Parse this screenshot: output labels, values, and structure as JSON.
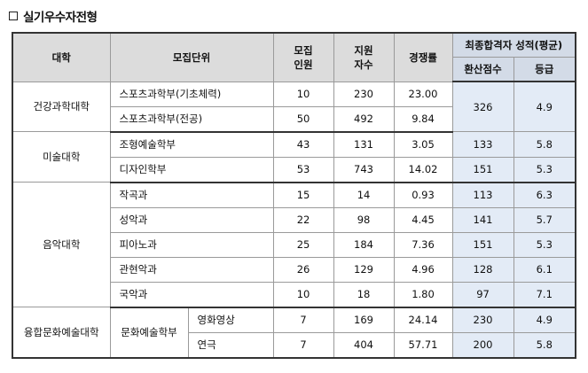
{
  "title": "실기우수자전형",
  "headers": {
    "college": "대학",
    "unit": "모집단위",
    "quota": "모집\n인원",
    "applicants": "지원\n자수",
    "ratio": "경쟁률",
    "final": "최종합격자 성적(평균)",
    "score": "환산점수",
    "grade": "등급"
  },
  "colleges": {
    "c1": "건강과학대학",
    "c2": "미술대학",
    "c3": "음악대학",
    "c4": "융합문화예술대학"
  },
  "rows": [
    {
      "unit": "스포츠과학부(기초체력)",
      "quota": "10",
      "applicants": "230",
      "ratio": "23.00"
    },
    {
      "unit": "스포츠과학부(전공)",
      "quota": "50",
      "applicants": "492",
      "ratio": "9.84"
    },
    {
      "unit": "조형예술학부",
      "quota": "43",
      "applicants": "131",
      "ratio": "3.05",
      "score": "133",
      "grade": "5.8"
    },
    {
      "unit": "디자인학부",
      "quota": "53",
      "applicants": "743",
      "ratio": "14.02",
      "score": "151",
      "grade": "5.3"
    },
    {
      "unit": "작곡과",
      "quota": "15",
      "applicants": "14",
      "ratio": "0.93",
      "score": "113",
      "grade": "6.3"
    },
    {
      "unit": "성악과",
      "quota": "22",
      "applicants": "98",
      "ratio": "4.45",
      "score": "141",
      "grade": "5.7"
    },
    {
      "unit": "피아노과",
      "quota": "25",
      "applicants": "184",
      "ratio": "7.36",
      "score": "151",
      "grade": "5.3"
    },
    {
      "unit": "관현악과",
      "quota": "26",
      "applicants": "129",
      "ratio": "4.96",
      "score": "128",
      "grade": "6.1"
    },
    {
      "unit": "국악과",
      "quota": "10",
      "applicants": "18",
      "ratio": "1.80",
      "score": "97",
      "grade": "7.1"
    },
    {
      "unit": "문화예술학부",
      "sub": "영화영상",
      "quota": "7",
      "applicants": "169",
      "ratio": "24.14",
      "score": "230",
      "grade": "4.9"
    },
    {
      "sub": "연극",
      "quota": "7",
      "applicants": "404",
      "ratio": "57.71",
      "score": "200",
      "grade": "5.8"
    }
  ],
  "merged": {
    "score": "326",
    "grade": "4.9"
  }
}
